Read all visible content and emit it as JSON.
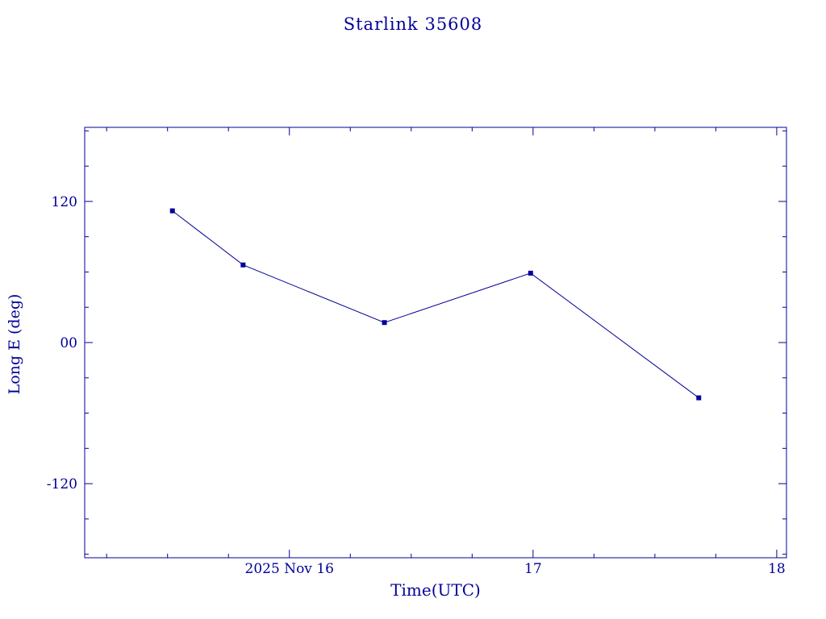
{
  "chart_data": {
    "type": "line",
    "title": "Starlink 35608",
    "xlabel": "Time(UTC)",
    "ylabel": "Long E (deg)",
    "series": [
      {
        "name": "Long E (deg)",
        "x_hours_utc": [
          15.52,
          15.81,
          16.39,
          16.99,
          17.68
        ],
        "y_deg": [
          112,
          66,
          17,
          59,
          -47
        ]
      }
    ],
    "xlim": [
      15.16,
      18.04
    ],
    "ylim": [
      -183,
      183
    ],
    "x_ticks": [
      {
        "value": 16,
        "label": "2025 Nov 16"
      },
      {
        "value": 17,
        "label": "17"
      },
      {
        "value": 18,
        "label": "18"
      }
    ],
    "y_ticks": [
      {
        "value": 120,
        "label": "120"
      },
      {
        "value": 0,
        "label": "00"
      },
      {
        "value": -120,
        "label": "-120"
      }
    ],
    "grid": false,
    "legend": "none",
    "marker": "square",
    "line_color": "#000099",
    "marker_color": "#000099",
    "text_color": "#000099"
  }
}
